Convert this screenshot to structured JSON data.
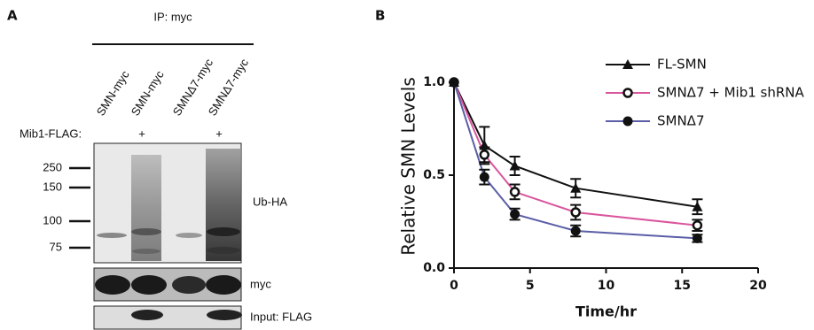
{
  "panel_a": {
    "label": "A",
    "ip_label": "IP: myc",
    "lanes": [
      "SMN-myc",
      "SMN-myc",
      "SMNΔ7-myc",
      "SMNΔ7-myc"
    ],
    "mib1_flag": {
      "label": "Mib1-FLAG:",
      "lanes": [
        null,
        "+",
        null,
        "+"
      ]
    },
    "markers": [
      "250",
      "150",
      "100",
      "75"
    ],
    "blots": [
      "Ub-HA",
      "myc",
      "Input: FLAG"
    ]
  },
  "panel_b": {
    "label": "B"
  },
  "chart_data": {
    "type": "line",
    "x_label": "Time/hr",
    "y_label": "Relative SMN Levels",
    "x": [
      0,
      2,
      4,
      8,
      16
    ],
    "xlim": [
      0,
      20
    ],
    "xticks": [
      0,
      5,
      10,
      15,
      20
    ],
    "ylim": [
      0,
      1
    ],
    "yticks": [
      {
        "value": 0,
        "label": "0.0"
      },
      {
        "value": 0.5,
        "label": "0.5"
      },
      {
        "value": 1,
        "label": "1.0"
      }
    ],
    "marker_color": "#111111",
    "legend": "upper right",
    "series": [
      {
        "name": "FL-SMN",
        "color": "#111111",
        "marker": "triangle",
        "values": [
          1.0,
          0.66,
          0.55,
          0.43,
          0.33
        ],
        "errors": [
          null,
          0.1,
          0.05,
          0.05,
          0.04
        ]
      },
      {
        "name": "SMNΔ7 + Mib1 shRNA",
        "color": "#d9559c",
        "marker": "open-circle",
        "values": [
          1.0,
          0.61,
          0.41,
          0.3,
          0.23
        ],
        "errors": [
          null,
          0.04,
          0.04,
          0.04,
          0.03
        ]
      },
      {
        "name": "SMNΔ7",
        "color": "#5b5ea6",
        "marker": "circle",
        "values": [
          1.0,
          0.49,
          0.29,
          0.2,
          0.16
        ],
        "errors": [
          null,
          0.04,
          0.03,
          0.03,
          0.02
        ]
      }
    ]
  }
}
